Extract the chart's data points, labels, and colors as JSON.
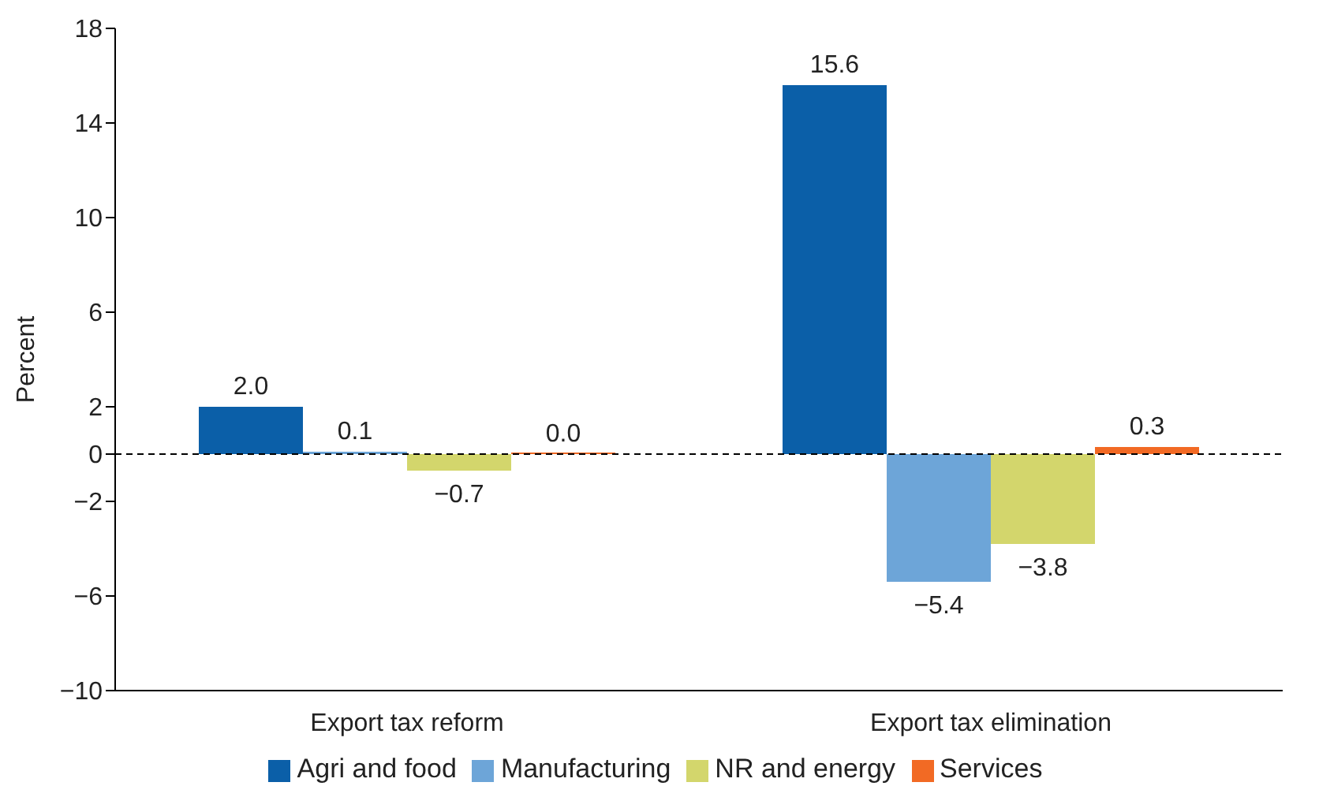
{
  "chart_data": {
    "type": "bar",
    "ylabel": "Percent",
    "categories": [
      "Export tax reform",
      "Export tax elimination"
    ],
    "series": [
      {
        "name": "Agri and food",
        "color": "#0b5fa8",
        "values": [
          2.0,
          15.6
        ],
        "value_labels": [
          "2.0",
          "15.6"
        ]
      },
      {
        "name": "Manufacturing",
        "color": "#6da5d8",
        "values": [
          0.1,
          -5.4
        ],
        "value_labels": [
          "0.1",
          "−5.4"
        ]
      },
      {
        "name": "NR and energy",
        "color": "#d3d66c",
        "values": [
          -0.7,
          -3.8
        ],
        "value_labels": [
          "−0.7",
          "−3.8"
        ]
      },
      {
        "name": "Services",
        "color": "#f26a24",
        "values": [
          0.0,
          0.3
        ],
        "value_labels": [
          "0.0",
          "0.3"
        ]
      }
    ],
    "ylim": [
      -10,
      18
    ],
    "yticks": [
      {
        "value": -10,
        "label": "−10"
      },
      {
        "value": -6,
        "label": "−6"
      },
      {
        "value": -2,
        "label": "−2"
      },
      0,
      2,
      6,
      10,
      14,
      18
    ],
    "ref_lines": [
      {
        "axis": "y",
        "value": 0,
        "line_style": "dashed",
        "color": "#000000"
      }
    ],
    "legend": "bottom",
    "grid": false
  }
}
